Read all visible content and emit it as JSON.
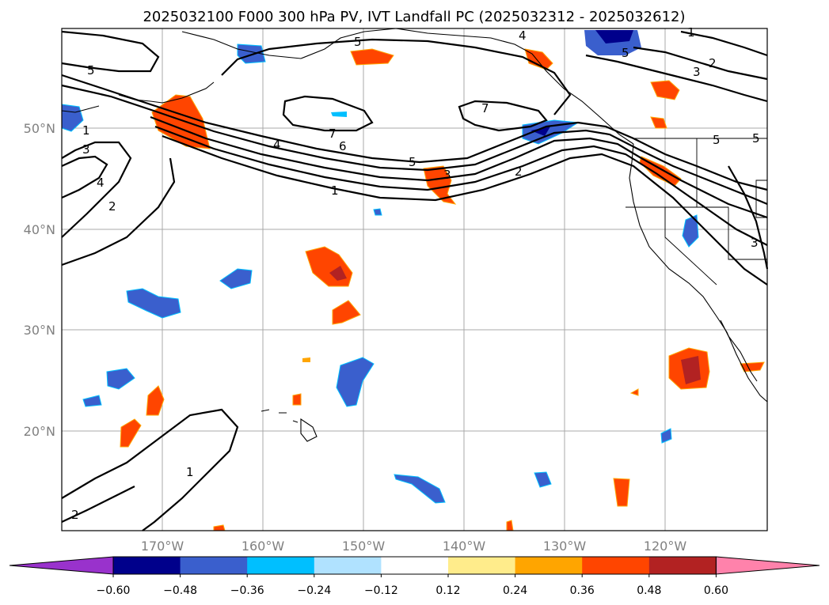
{
  "title": "2025032100 F000 300 hPa PV, IVT Landfall PC (2025032312 - 2025032612)",
  "map": {
    "lat_labels": [
      "50°N",
      "40°N",
      "30°N",
      "20°N"
    ],
    "lon_labels": [
      "170°W",
      "160°W",
      "150°W",
      "140°W",
      "130°W",
      "120°W"
    ],
    "pv_contour_labels": [
      "5",
      "5",
      "4",
      "1",
      "1",
      "3",
      "4",
      "2",
      "4",
      "5",
      "6",
      "7",
      "7",
      "5",
      "3",
      "2",
      "1",
      "2",
      "3",
      "1",
      "2",
      "3",
      "5",
      "5"
    ]
  },
  "colorbar": {
    "tick_labels": [
      "−0.60",
      "−0.48",
      "−0.36",
      "−0.24",
      "−0.12",
      "0.12",
      "0.24",
      "0.36",
      "0.48",
      "0.60"
    ],
    "colors": [
      "#9932cc",
      "#00008b",
      "#3a5fcd",
      "#00bfff",
      "#b0e2ff",
      "#ffffff",
      "#ffec8b",
      "#ffa500",
      "#ff4500",
      "#b22222",
      "#ff82ab"
    ]
  }
}
